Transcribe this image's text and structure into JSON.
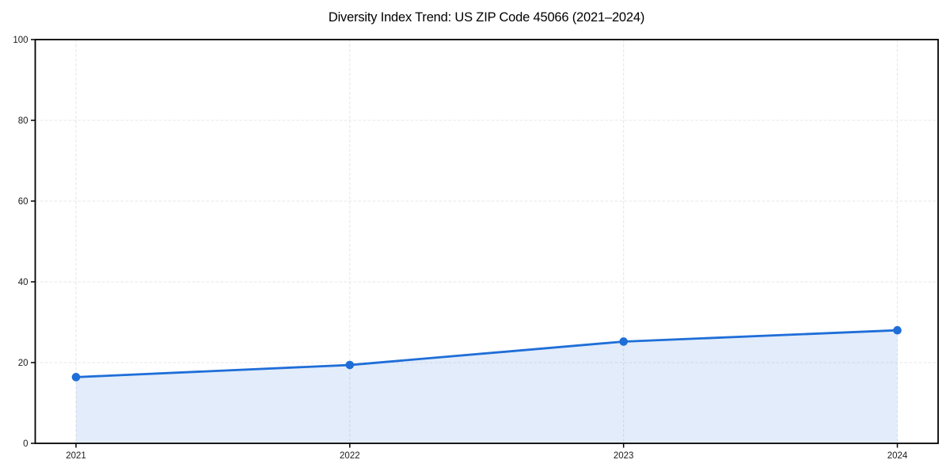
{
  "figure": {
    "background": "#ffffff"
  },
  "chart_data": {
    "type": "area",
    "title": "Diversity Index Trend: US ZIP Code 45066 (2021–2024)",
    "x_labels": [
      "2021",
      "2022",
      "2023",
      "2024"
    ],
    "series": [
      {
        "name": "Diversity Index",
        "values": [
          16.4,
          19.4,
          25.2,
          28.0
        ]
      }
    ],
    "xlabel": "",
    "ylabel": "",
    "ylim": [
      0,
      100
    ],
    "yticks": [
      0,
      20,
      40,
      60,
      80,
      100
    ],
    "grid": {
      "visible": true,
      "style": "dashed",
      "horizontal": true,
      "vertical": true
    },
    "legend_position": "none",
    "colors": {
      "line": "#1f6ed8",
      "marker": "#1f6ed8",
      "fill": "#1f6ed8",
      "fill_opacity": 0.13,
      "grid": "#e7e7e7",
      "spine": "#000000",
      "tick_label": "#1a1a1a",
      "title": "#000000"
    }
  }
}
